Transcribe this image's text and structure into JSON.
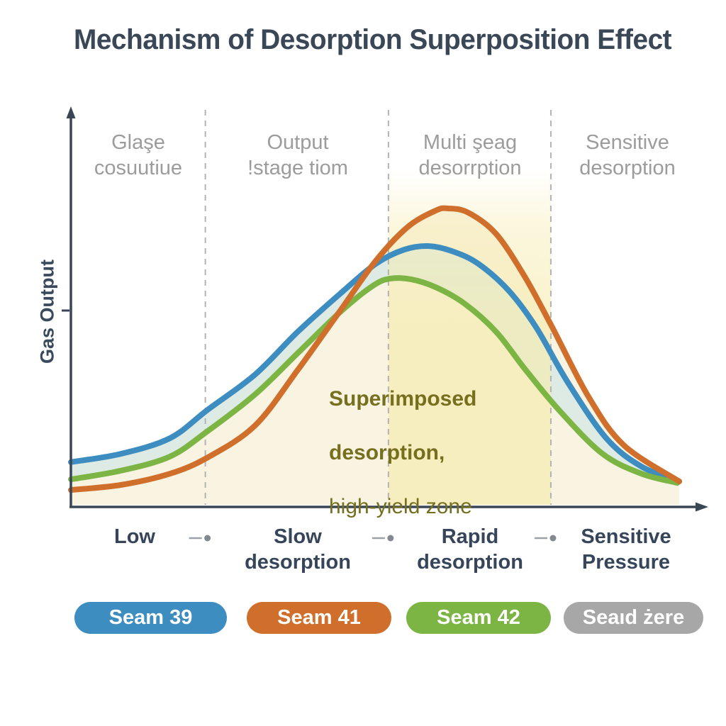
{
  "title": "Mechanism of Desorption Superposition Effect",
  "y_axis": {
    "label": "Gas Output"
  },
  "zone_labels": [
    "Glaşe\ncosuutiue",
    "Output\n!stage tiom",
    "Multi şeag\ndesorrption",
    "Sensitive\ndesorption"
  ],
  "x_axis": {
    "stage_labels": [
      "Low",
      "Slow\ndesorption",
      "Rapid\ndesorption",
      "Sensitive\nPressure"
    ]
  },
  "annotation": {
    "line1": "Superimposed",
    "line2": "desorption,",
    "line3": "high-yield zone",
    "color": "#756f1e"
  },
  "legend": [
    {
      "label": "Seam 39",
      "color": "#3d8dc1"
    },
    {
      "label": "Seam 41",
      "color": "#d06f2b"
    },
    {
      "label": "Seam 42",
      "color": "#7cb544"
    },
    {
      "label": "Seaıd żere",
      "color": "#a7a7a7"
    }
  ],
  "colors": {
    "title": "#3a4757",
    "axis": "#3a4656",
    "zone_label": "#9c9c9c",
    "x_label": "#36455a",
    "dashed_line": "#b3b3b3",
    "fill_cream": "#f9f3e2",
    "fill_teal": "#ddebe4",
    "band_yellow": "#f6ebac"
  },
  "chart_data": {
    "type": "line",
    "title": "Mechanism of Desorption Superposition Effect",
    "ylabel": "Gas Output",
    "xlabel_stages": [
      "Low",
      "Slow desorption",
      "Rapid desorption",
      "Sensitive Pressure"
    ],
    "axis_note": "qualitative axes: x = pressure stage normalized 0-1, y = gas output normalized 0-1",
    "zone_boundaries": [
      0.221,
      0.522,
      0.789
    ],
    "highlight_zone": {
      "from": 0.522,
      "to": 0.789,
      "label": "Superimposed desorption, high-yield zone",
      "color": "#f6ebac"
    },
    "series": [
      {
        "name": "Seam 39",
        "color": "#3d8dc1",
        "points": [
          [
            0,
            0.144
          ],
          [
            0.082,
            0.172
          ],
          [
            0.163,
            0.225
          ],
          [
            0.225,
            0.321
          ],
          [
            0.303,
            0.44
          ],
          [
            0.373,
            0.584
          ],
          [
            0.443,
            0.713
          ],
          [
            0.501,
            0.813
          ],
          [
            0.548,
            0.861
          ],
          [
            0.589,
            0.873
          ],
          [
            0.629,
            0.854
          ],
          [
            0.67,
            0.813
          ],
          [
            0.72,
            0.722
          ],
          [
            0.765,
            0.598
          ],
          [
            0.816,
            0.416
          ],
          [
            0.88,
            0.225
          ],
          [
            0.938,
            0.129
          ],
          [
            1,
            0.079
          ]
        ]
      },
      {
        "name": "Seam 41",
        "color": "#d06f2b",
        "points": [
          [
            0,
            0.05
          ],
          [
            0.082,
            0.067
          ],
          [
            0.163,
            0.105
          ],
          [
            0.225,
            0.16
          ],
          [
            0.303,
            0.268
          ],
          [
            0.373,
            0.455
          ],
          [
            0.443,
            0.656
          ],
          [
            0.501,
            0.823
          ],
          [
            0.554,
            0.938
          ],
          [
            0.6,
            0.993
          ],
          [
            0.62,
            1.0
          ],
          [
            0.653,
            0.986
          ],
          [
            0.699,
            0.914
          ],
          [
            0.746,
            0.77
          ],
          [
            0.789,
            0.608
          ],
          [
            0.851,
            0.364
          ],
          [
            0.909,
            0.201
          ],
          [
            1,
            0.079
          ]
        ]
      },
      {
        "name": "Seam 42",
        "color": "#7cb544",
        "points": [
          [
            0,
            0.086
          ],
          [
            0.082,
            0.115
          ],
          [
            0.163,
            0.163
          ],
          [
            0.225,
            0.249
          ],
          [
            0.303,
            0.373
          ],
          [
            0.373,
            0.512
          ],
          [
            0.443,
            0.651
          ],
          [
            0.495,
            0.737
          ],
          [
            0.524,
            0.763
          ],
          [
            0.559,
            0.761
          ],
          [
            0.6,
            0.734
          ],
          [
            0.647,
            0.679
          ],
          [
            0.699,
            0.584
          ],
          [
            0.746,
            0.459
          ],
          [
            0.804,
            0.316
          ],
          [
            0.874,
            0.172
          ],
          [
            0.938,
            0.105
          ],
          [
            0.997,
            0.074
          ]
        ]
      }
    ]
  }
}
